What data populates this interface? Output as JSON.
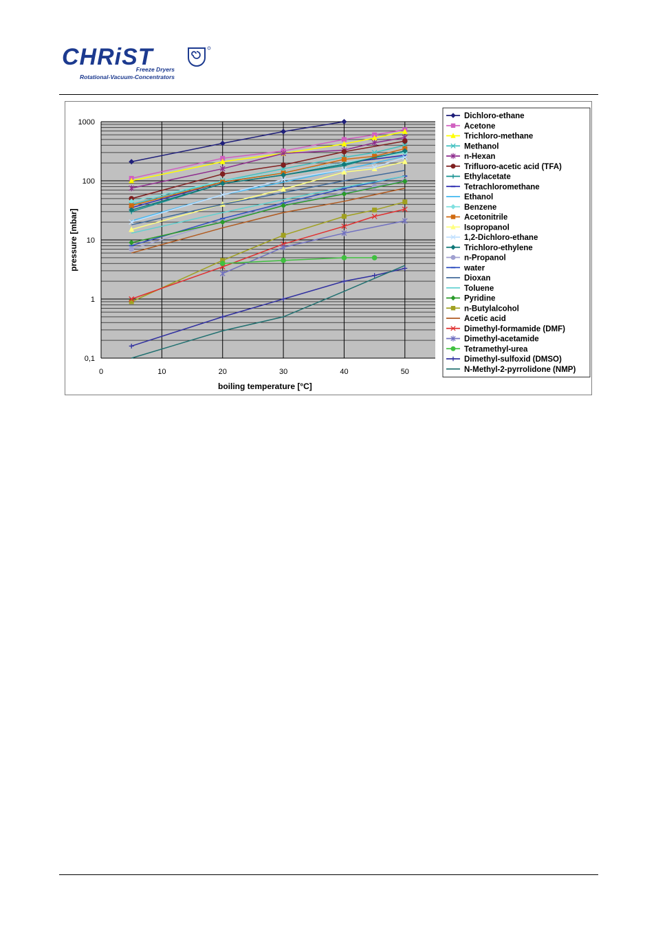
{
  "header": {
    "brand": "CHRiST",
    "line1": "Freeze Dryers",
    "line2": "Rotational-Vacuum-Concentrators",
    "brand_color": "#1c3a8f"
  },
  "chart_data": {
    "type": "line",
    "title": "",
    "xlabel": "boiling temperature [°C]",
    "ylabel": "pressure [mbar]",
    "xlim": [
      0,
      55
    ],
    "ylim": [
      0.1,
      1000
    ],
    "y_scale": "log",
    "x_ticks": [
      "0",
      "10",
      "20",
      "30",
      "40",
      "50"
    ],
    "y_ticks": [
      "0,1",
      "1",
      "10",
      "100",
      "1000"
    ],
    "grid": true,
    "legend_position": "right",
    "plot_background": "#c0c0c0",
    "series": [
      {
        "name": "Dichloro-ethane",
        "color": "#1f1f7a",
        "marker": "diamond",
        "x": [
          5,
          20,
          30,
          40
        ],
        "y": [
          210,
          430,
          680,
          1000
        ]
      },
      {
        "name": "Acetone",
        "color": "#d060c0",
        "marker": "square",
        "x": [
          5,
          20,
          30,
          40,
          45,
          50
        ],
        "y": [
          110,
          240,
          320,
          500,
          600,
          730
        ]
      },
      {
        "name": "Trichloro-methane",
        "color": "#ffff00",
        "marker": "triangle",
        "x": [
          5,
          20,
          30,
          40,
          45,
          50
        ],
        "y": [
          100,
          210,
          290,
          420,
          530,
          680
        ]
      },
      {
        "name": "Methanol",
        "color": "#40c0c0",
        "marker": "x",
        "x": [
          5,
          20,
          30,
          40,
          45,
          50
        ],
        "y": [
          40,
          100,
          160,
          250,
          300,
          400
        ]
      },
      {
        "name": "n-Hexan",
        "color": "#8e2c8e",
        "marker": "star",
        "x": [
          5,
          20,
          30,
          40,
          45,
          50
        ],
        "y": [
          75,
          160,
          290,
          330,
          440,
          540
        ]
      },
      {
        "name": "Trifluoro-acetic acid (TFA)",
        "color": "#7f1f1f",
        "marker": "circle",
        "x": [
          5,
          20,
          30,
          40,
          50
        ],
        "y": [
          50,
          130,
          185,
          310,
          470
        ]
      },
      {
        "name": "Ethylacetate",
        "color": "#159090",
        "marker": "plus",
        "x": [
          5,
          20,
          30,
          40,
          45,
          50
        ],
        "y": [
          30,
          90,
          125,
          180,
          250,
          310
        ]
      },
      {
        "name": "Tetrachloromethane",
        "color": "#2a2ab0",
        "marker": "dash",
        "x": [
          5,
          20,
          30,
          40,
          50
        ],
        "y": [
          35,
          95,
          140,
          200,
          270
        ]
      },
      {
        "name": "Ethanol",
        "color": "#40b8f0",
        "marker": "none",
        "x": [
          5,
          20,
          30,
          40,
          50
        ],
        "y": [
          21,
          58,
          95,
          155,
          260
        ]
      },
      {
        "name": "Benzene",
        "color": "#80e0e0",
        "marker": "diamond",
        "x": [
          5,
          20,
          30,
          40,
          50
        ],
        "y": [
          45,
          100,
          140,
          200,
          300
        ]
      },
      {
        "name": "Acetonitrile",
        "color": "#d06a10",
        "marker": "square",
        "x": [
          5,
          20,
          30,
          40,
          45,
          50
        ],
        "y": [
          38,
          95,
          135,
          230,
          260,
          350
        ]
      },
      {
        "name": "Isopropanol",
        "color": "#ffff80",
        "marker": "triangle",
        "x": [
          5,
          20,
          30,
          40,
          45,
          50
        ],
        "y": [
          15,
          40,
          72,
          140,
          160,
          210
        ]
      },
      {
        "name": "1,2-Dichloro-ethane",
        "color": "#c0e0ff",
        "marker": "x",
        "x": [
          5,
          20,
          30,
          40,
          45,
          50
        ],
        "y": [
          20,
          58,
          105,
          155,
          170,
          250
        ]
      },
      {
        "name": "Trichloro-ethylene",
        "color": "#107878",
        "marker": "diamond",
        "x": [
          5,
          20,
          30,
          40,
          50
        ],
        "y": [
          32,
          90,
          125,
          190,
          320
        ]
      },
      {
        "name": "n-Propanol",
        "color": "#a0a0d0",
        "marker": "circle",
        "x": [
          5,
          20,
          30,
          40,
          45,
          50
        ],
        "y": [
          7,
          21,
          40,
          62,
          80,
          100
        ]
      },
      {
        "name": "water",
        "color": "#3050c0",
        "marker": "dash",
        "x": [
          5,
          20,
          30,
          40,
          50
        ],
        "y": [
          8,
          23,
          42,
          74,
          120
        ]
      },
      {
        "name": "Dioxan",
        "color": "#406a9a",
        "marker": "none",
        "x": [
          5,
          20,
          30,
          40,
          50
        ],
        "y": [
          18,
          40,
          63,
          100,
          150
        ]
      },
      {
        "name": "Toluene",
        "color": "#60d0d0",
        "marker": "none",
        "x": [
          5,
          20,
          30,
          40,
          50
        ],
        "y": [
          13,
          29,
          48,
          78,
          120
        ]
      },
      {
        "name": "Pyridine",
        "color": "#2a9a2a",
        "marker": "diamond",
        "x": [
          5,
          20,
          30,
          40,
          50
        ],
        "y": [
          9,
          20,
          38,
          60,
          98
        ]
      },
      {
        "name": "n-Butylalcohol",
        "color": "#a0a020",
        "marker": "square",
        "x": [
          5,
          20,
          30,
          40,
          45,
          50
        ],
        "y": [
          0.9,
          4.5,
          12,
          25,
          32,
          44
        ]
      },
      {
        "name": "Acetic acid",
        "color": "#b05a20",
        "marker": "none",
        "x": [
          5,
          20,
          30,
          40,
          50
        ],
        "y": [
          6,
          16,
          29,
          45,
          75
        ]
      },
      {
        "name": "Dimethyl-formamide (DMF)",
        "color": "#e03030",
        "marker": "x",
        "x": [
          5,
          20,
          30,
          40,
          45,
          50
        ],
        "y": [
          1,
          3.5,
          8.5,
          17,
          25,
          33
        ]
      },
      {
        "name": "Dimethyl-acetamide",
        "color": "#7070c0",
        "marker": "star",
        "x": [
          20,
          30,
          40,
          50
        ],
        "y": [
          2.7,
          7.5,
          13,
          21
        ]
      },
      {
        "name": "Tetramethyl-urea",
        "color": "#40c040",
        "marker": "circle",
        "x": [
          20,
          30,
          40,
          45
        ],
        "y": [
          4,
          4.5,
          5,
          5
        ]
      },
      {
        "name": "Dimethyl-sulfoxid (DMSO)",
        "color": "#3030a0",
        "marker": "plus",
        "x": [
          5,
          20,
          30,
          40,
          45,
          50
        ],
        "y": [
          0.16,
          0.5,
          1,
          2,
          2.5,
          3.3
        ]
      },
      {
        "name": "N-Methyl-2-pyrrolidone (NMP)",
        "color": "#207070",
        "marker": "none",
        "x": [
          5,
          20,
          30,
          40,
          50
        ],
        "y": [
          0.1,
          0.29,
          0.5,
          1.35,
          3.7
        ]
      }
    ]
  }
}
